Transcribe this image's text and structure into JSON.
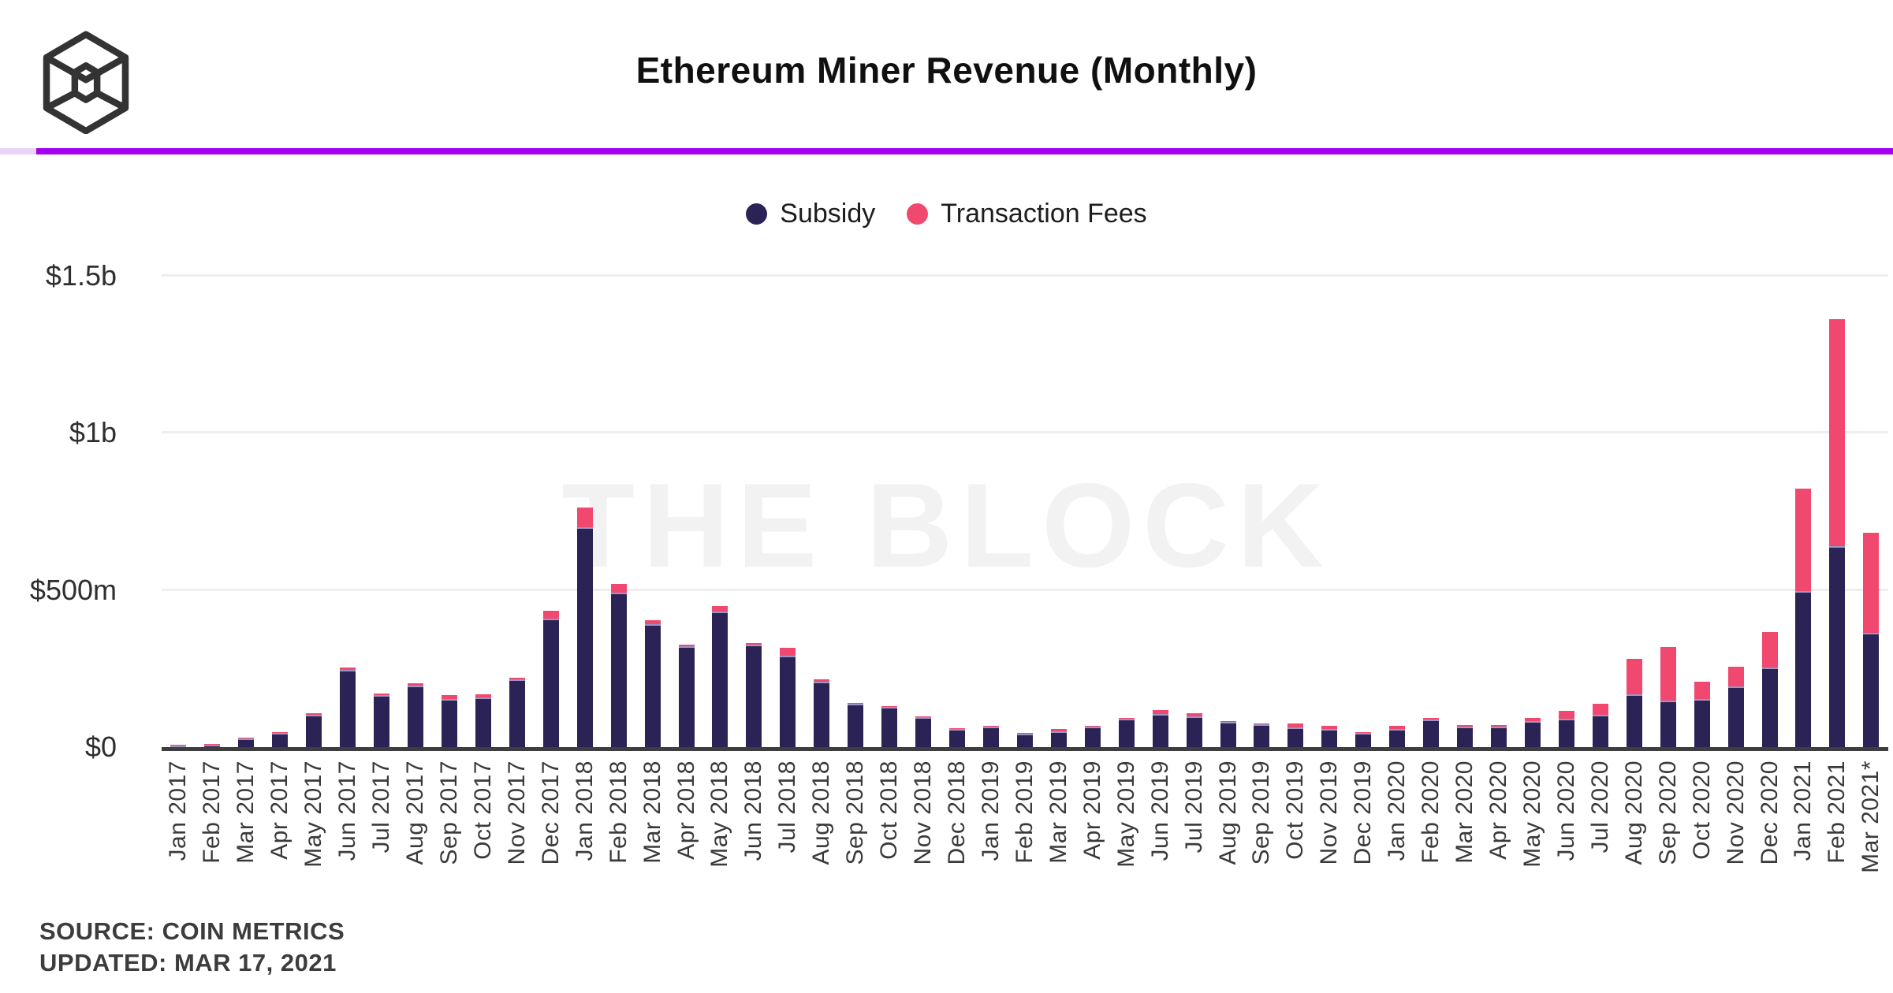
{
  "header": {
    "title": "Ethereum Miner Revenue (Monthly)",
    "logo": "the-block-logo"
  },
  "colors": {
    "divider_purple": "#a200f2",
    "subsidy_navy": "#2b2355",
    "fees_pink": "#f0486e",
    "watermark_gray": "#f2f2f2"
  },
  "legend": {
    "subsidy_label": "Subsidy",
    "fees_label": "Transaction Fees"
  },
  "watermark": "THE BLOCK",
  "footer": {
    "source": "SOURCE: COIN METRICS",
    "updated": "UPDATED: MAR 17, 2021"
  },
  "chart_data": {
    "type": "bar",
    "stacked": true,
    "title": "Ethereum Miner Revenue (Monthly)",
    "unit": "USD millions",
    "ylim": [
      0,
      1500
    ],
    "grid": "horizontal",
    "legend_position": "top-center",
    "y_ticks": [
      {
        "label": "$0",
        "value": 0
      },
      {
        "label": "$500m",
        "value": 500
      },
      {
        "label": "$1b",
        "value": 1000
      },
      {
        "label": "$1.5b",
        "value": 1500
      }
    ],
    "categories": [
      "Jan 2017",
      "Feb 2017",
      "Mar 2017",
      "Apr 2017",
      "May 2017",
      "Jun 2017",
      "Jul 2017",
      "Aug 2017",
      "Sep 2017",
      "Oct 2017",
      "Nov 2017",
      "Dec 2017",
      "Jan 2018",
      "Feb 2018",
      "Mar 2018",
      "Apr 2018",
      "May 2018",
      "Jun 2018",
      "Jul 2018",
      "Aug 2018",
      "Sep 2018",
      "Oct 2018",
      "Nov 2018",
      "Dec 2018",
      "Jan 2019",
      "Feb 2019",
      "Mar 2019",
      "Apr 2019",
      "May 2019",
      "Jun 2019",
      "Jul 2019",
      "Aug 2019",
      "Sep 2019",
      "Oct 2019",
      "Nov 2019",
      "Dec 2019",
      "Jan 2020",
      "Feb 2020",
      "Mar 2020",
      "Apr 2020",
      "May 2020",
      "Jun 2020",
      "Jul 2020",
      "Aug 2020",
      "Sep 2020",
      "Oct 2020",
      "Nov 2020",
      "Dec 2020",
      "Jan 2021",
      "Feb 2021",
      "Mar 2021*"
    ],
    "series": [
      {
        "name": "Subsidy",
        "color": "#2b2355",
        "values": [
          6,
          7,
          28,
          45,
          104,
          245,
          165,
          196,
          154,
          158,
          215,
          408,
          700,
          492,
          392,
          320,
          432,
          325,
          290,
          207,
          138,
          128,
          95,
          58,
          66,
          43,
          50,
          66,
          90,
          106,
          97,
          81,
          73,
          64,
          57,
          44,
          58,
          88,
          66,
          66,
          82,
          90,
          102,
          168,
          148,
          152,
          192,
          254,
          497,
          640,
          365
        ]
      },
      {
        "name": "Transaction Fees",
        "color": "#f0486e",
        "values": [
          1,
          1,
          2,
          3,
          4,
          8,
          6,
          8,
          11,
          11,
          7,
          25,
          63,
          28,
          11,
          5,
          18,
          7,
          25,
          10,
          3,
          3,
          3,
          3,
          3,
          3,
          8,
          3,
          4,
          11,
          11,
          3,
          3,
          11,
          12,
          3,
          10,
          4,
          4,
          4,
          10,
          25,
          37,
          112,
          170,
          57,
          64,
          113,
          326,
          723,
          318
        ]
      }
    ]
  }
}
